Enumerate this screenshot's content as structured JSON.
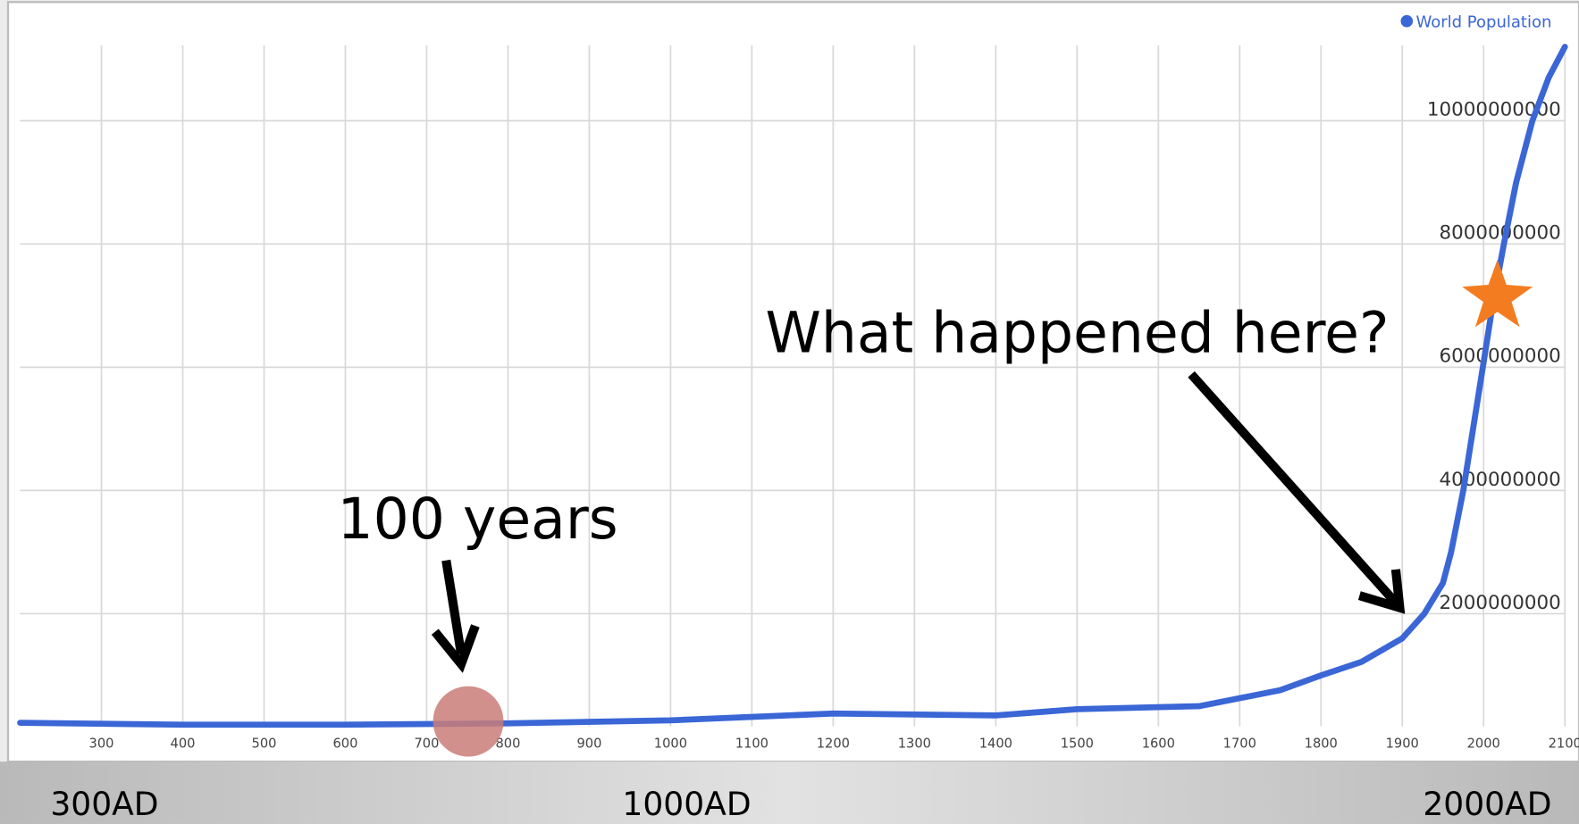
{
  "chart_data": {
    "type": "line",
    "legend": "World Population",
    "legend_position": "top-right",
    "x": [
      200,
      400,
      600,
      800,
      1000,
      1200,
      1400,
      1500,
      1650,
      1750,
      1800,
      1850,
      1900,
      1927,
      1950,
      1960,
      1975,
      1987,
      1999,
      2011,
      2025,
      2040,
      2060,
      2080,
      2100
    ],
    "series": [
      {
        "name": "World Population",
        "color": "#3a66d6",
        "values": [
          230000000,
          200000000,
          200000000,
          220000000,
          270000000,
          380000000,
          350000000,
          450000000,
          500000000,
          760000000,
          1000000000,
          1220000000,
          1600000000,
          2000000000,
          2500000000,
          3000000000,
          4000000000,
          5000000000,
          6000000000,
          7000000000,
          8000000000,
          9000000000,
          10000000000,
          10700000000,
          11200000000
        ]
      }
    ],
    "xlim": [
      200,
      2100
    ],
    "xticks": [
      300,
      400,
      500,
      600,
      700,
      800,
      900,
      1000,
      1100,
      1200,
      1300,
      1400,
      1500,
      1600,
      1700,
      1800,
      1900,
      2000,
      2100
    ],
    "ylim": [
      0,
      12000000000
    ],
    "yticks": [
      2000000000,
      4000000000,
      6000000000,
      8000000000,
      10000000000
    ],
    "grid": true,
    "annotations": [
      "100 years",
      "What happened here?"
    ],
    "footer_labels": [
      "300AD",
      "1000AD",
      "2000AD"
    ]
  }
}
